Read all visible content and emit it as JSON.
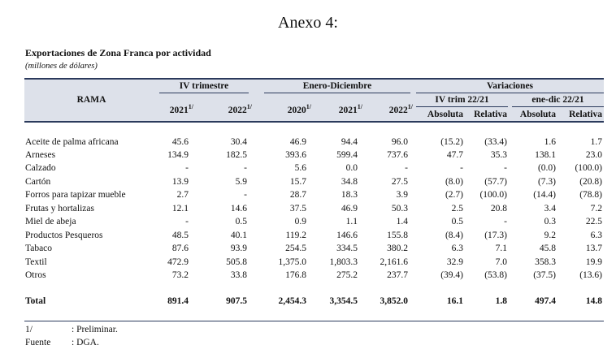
{
  "title": "Anexo 4:",
  "subtitle": "Exportaciones de Zona Franca por actividad",
  "units": "(millones de dólares)",
  "header": {
    "rama": "RAMA",
    "groups": [
      "IV trimestre",
      "Enero-Diciembre",
      "Variaciones"
    ],
    "subgroups": [
      "IV trim 22/21",
      "ene-dic 22/21"
    ],
    "years": [
      "2021",
      "2022",
      "2020",
      "2021",
      "2022"
    ],
    "note_mark": "1/",
    "measures": [
      "Absoluta",
      "Relativa",
      "Absoluta",
      "Relativa"
    ]
  },
  "table": {
    "rows": [
      [
        "Aceite de palma africana",
        "45.6",
        "30.4",
        "46.9",
        "94.4",
        "96.0",
        "(15.2)",
        "(33.4)",
        "1.6",
        "1.7"
      ],
      [
        "Arneses",
        "134.9",
        "182.5",
        "393.6",
        "599.4",
        "737.6",
        "47.7",
        "35.3",
        "138.1",
        "23.0"
      ],
      [
        "Calzado",
        "-",
        "-",
        "5.6",
        "0.0",
        "-",
        "-",
        "-",
        "(0.0)",
        "(100.0)"
      ],
      [
        "Cartón",
        "13.9",
        "5.9",
        "15.7",
        "34.8",
        "27.5",
        "(8.0)",
        "(57.7)",
        "(7.3)",
        "(20.8)"
      ],
      [
        "Forros para tapizar mueble",
        "2.7",
        "-",
        "28.7",
        "18.3",
        "3.9",
        "(2.7)",
        "(100.0)",
        "(14.4)",
        "(78.8)"
      ],
      [
        "Frutas y hortalizas",
        "12.1",
        "14.6",
        "37.5",
        "46.9",
        "50.3",
        "2.5",
        "20.8",
        "3.4",
        "7.2"
      ],
      [
        "Miel de abeja",
        "-",
        "0.5",
        "0.9",
        "1.1",
        "1.4",
        "0.5",
        "-",
        "0.3",
        "22.5"
      ],
      [
        "Productos Pesqueros",
        "48.5",
        "40.1",
        "119.2",
        "146.6",
        "155.8",
        "(8.4)",
        "(17.3)",
        "9.2",
        "6.3"
      ],
      [
        "Tabaco",
        "87.6",
        "93.9",
        "254.5",
        "334.5",
        "380.2",
        "6.3",
        "7.1",
        "45.8",
        "13.7"
      ],
      [
        "Textil",
        "472.9",
        "505.8",
        "1,375.0",
        "1,803.3",
        "2,161.6",
        "32.9",
        "7.0",
        "358.3",
        "19.9"
      ],
      [
        "Otros",
        "73.2",
        "33.8",
        "176.8",
        "275.2",
        "237.7",
        "(39.4)",
        "(53.8)",
        "(37.5)",
        "(13.6)"
      ]
    ],
    "total": [
      "Total",
      "891.4",
      "907.5",
      "2,454.3",
      "3,354.5",
      "3,852.0",
      "16.1",
      "1.8",
      "497.4",
      "14.8"
    ]
  },
  "footnotes": [
    [
      "1/",
      ": Preliminar."
    ],
    [
      "Fuente",
      ": DGA."
    ]
  ]
}
